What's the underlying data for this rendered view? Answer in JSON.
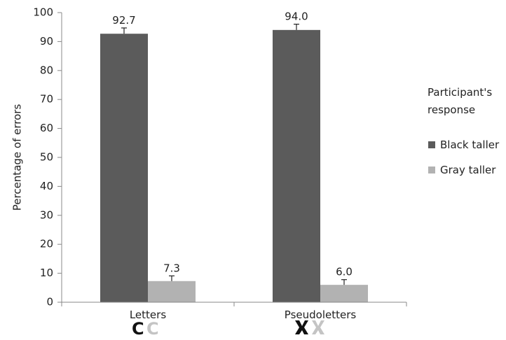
{
  "chart_data": {
    "type": "bar",
    "categories": [
      "Letters",
      "Pseudoletters"
    ],
    "series": [
      {
        "name": "Black taller",
        "values": [
          92.7,
          94.0
        ],
        "errors": [
          2.0,
          2.0
        ],
        "color": "#5b5b5b"
      },
      {
        "name": "Gray taller",
        "values": [
          7.3,
          6.0
        ],
        "errors": [
          1.8,
          1.8
        ],
        "color": "#b2b2b2"
      }
    ],
    "data_labels": [
      [
        "92.7",
        "94.0"
      ],
      [
        "7.3",
        "6.0"
      ]
    ],
    "ylabel": "Percentage of errors",
    "xlabel": "",
    "ylim": [
      0,
      100
    ],
    "yticks": [
      0,
      10,
      20,
      30,
      40,
      50,
      60,
      70,
      80,
      90,
      100
    ],
    "legend_title": "Participant's response",
    "legend_title_lines": [
      "Participant's",
      "response"
    ],
    "legend_position": "right",
    "grid": false
  }
}
